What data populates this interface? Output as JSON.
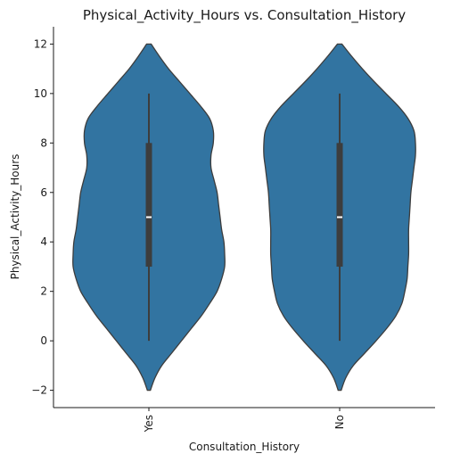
{
  "chart_data": {
    "type": "violin",
    "title": "Physical_Activity_Hours vs. Consultation_History",
    "xlabel": "Consultation_History",
    "ylabel": "Physical_Activity_Hours",
    "categories": [
      "Yes",
      "No"
    ],
    "ylim": [
      -2.7,
      12.7
    ],
    "yticks": [
      -2,
      0,
      2,
      4,
      6,
      8,
      10,
      12
    ],
    "ytick_labels": [
      "−2",
      "0",
      "2",
      "4",
      "6",
      "8",
      "10",
      "12"
    ],
    "grid": false,
    "color": "#3274a1",
    "edge_color": "#3d3d3d",
    "box_color": "#3d3d3d",
    "median_color": "#ffffff",
    "violins": [
      {
        "category": "Yes",
        "min": 0,
        "q1": 3,
        "median": 5,
        "q3": 8,
        "max": 10,
        "density": [
          [
            -2,
            0.02
          ],
          [
            -1.5,
            0.08
          ],
          [
            -1,
            0.17
          ],
          [
            -0.5,
            0.3
          ],
          [
            0,
            0.43
          ],
          [
            0.5,
            0.56
          ],
          [
            1,
            0.69
          ],
          [
            1.5,
            0.8
          ],
          [
            2,
            0.9
          ],
          [
            2.5,
            0.96
          ],
          [
            3,
            1.0
          ],
          [
            3.5,
            1.0
          ],
          [
            4,
            0.99
          ],
          [
            4.5,
            0.96
          ],
          [
            5,
            0.94
          ],
          [
            5.5,
            0.92
          ],
          [
            6,
            0.9
          ],
          [
            6.5,
            0.86
          ],
          [
            7,
            0.82
          ],
          [
            7.5,
            0.82
          ],
          [
            8,
            0.85
          ],
          [
            8.5,
            0.85
          ],
          [
            9,
            0.8
          ],
          [
            9.5,
            0.68
          ],
          [
            10,
            0.54
          ],
          [
            10.5,
            0.4
          ],
          [
            11,
            0.26
          ],
          [
            11.5,
            0.14
          ],
          [
            12,
            0.03
          ]
        ]
      },
      {
        "category": "No",
        "min": 0,
        "q1": 3,
        "median": 5,
        "q3": 8,
        "max": 10,
        "density": [
          [
            -2,
            0.02
          ],
          [
            -1.5,
            0.08
          ],
          [
            -1,
            0.18
          ],
          [
            -0.5,
            0.33
          ],
          [
            0,
            0.48
          ],
          [
            0.5,
            0.62
          ],
          [
            1,
            0.74
          ],
          [
            1.5,
            0.82
          ],
          [
            2,
            0.86
          ],
          [
            2.5,
            0.89
          ],
          [
            3,
            0.9
          ],
          [
            3.5,
            0.91
          ],
          [
            4,
            0.91
          ],
          [
            4.5,
            0.91
          ],
          [
            5,
            0.92
          ],
          [
            5.5,
            0.93
          ],
          [
            6,
            0.94
          ],
          [
            6.5,
            0.96
          ],
          [
            7,
            0.98
          ],
          [
            7.5,
            1.0
          ],
          [
            8,
            1.0
          ],
          [
            8.5,
            0.98
          ],
          [
            9,
            0.9
          ],
          [
            9.5,
            0.77
          ],
          [
            10,
            0.61
          ],
          [
            10.5,
            0.45
          ],
          [
            11,
            0.3
          ],
          [
            11.5,
            0.16
          ],
          [
            12,
            0.03
          ]
        ]
      }
    ]
  }
}
